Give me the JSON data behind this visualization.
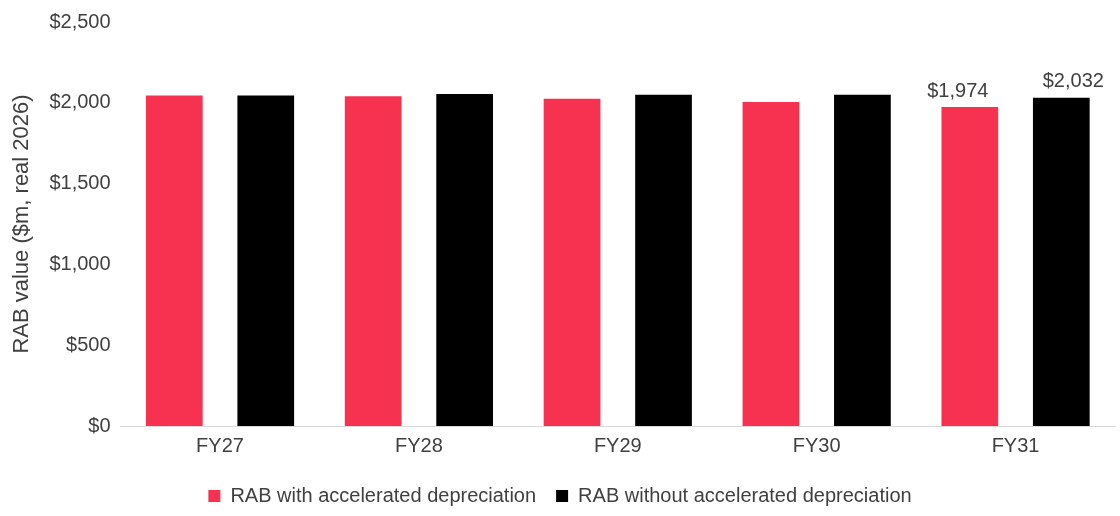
{
  "chart_data": {
    "type": "bar",
    "ylabel": "RAB value ($m, real 2026)",
    "categories": [
      "FY27",
      "FY28",
      "FY29",
      "FY30",
      "FY31"
    ],
    "series": [
      {
        "name": "RAB with accelerated depreciation",
        "color": "#f73150",
        "values": [
          2045,
          2040,
          2025,
          2005,
          1974
        ],
        "value_labels": [
          null,
          null,
          null,
          null,
          "$1,974"
        ]
      },
      {
        "name": "RAB without accelerated depreciation",
        "color": "#000000",
        "values": [
          2045,
          2055,
          2050,
          2050,
          2032
        ],
        "value_labels": [
          null,
          null,
          null,
          null,
          "$2,032"
        ]
      }
    ],
    "ylim": [
      0,
      2500
    ],
    "yticks": [
      {
        "value": 0,
        "label": "$0"
      },
      {
        "value": 500,
        "label": "$500"
      },
      {
        "value": 1000,
        "label": "$1,000"
      },
      {
        "value": 1500,
        "label": "$1,500"
      },
      {
        "value": 2000,
        "label": "$2,000"
      },
      {
        "value": 2500,
        "label": "$2,500"
      }
    ],
    "grid": false,
    "legend": "bottom"
  }
}
